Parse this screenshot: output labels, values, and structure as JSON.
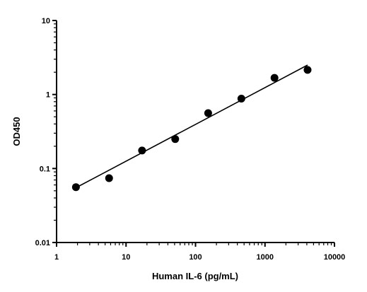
{
  "chart_data": {
    "type": "scatter",
    "x_scale": "log",
    "y_scale": "log",
    "xlim": [
      1,
      10000
    ],
    "ylim": [
      0.01,
      10
    ],
    "xlabel": "Human IL-6 (pg/mL)",
    "ylabel": "OD450",
    "x_ticks": [
      "1",
      "10",
      "100",
      "1000",
      "10000"
    ],
    "y_ticks": [
      "0.01",
      "0.1",
      "1",
      "10"
    ],
    "grid": false,
    "legend": "none",
    "points": [
      {
        "x": 1.9,
        "y": 0.056
      },
      {
        "x": 5.7,
        "y": 0.074
      },
      {
        "x": 17,
        "y": 0.175
      },
      {
        "x": 51,
        "y": 0.25
      },
      {
        "x": 152,
        "y": 0.56
      },
      {
        "x": 457,
        "y": 0.88
      },
      {
        "x": 1370,
        "y": 1.68
      },
      {
        "x": 4100,
        "y": 2.15
      }
    ],
    "fit_line": {
      "type": "linear on log-log",
      "x_range": [
        1.9,
        4100
      ],
      "y_range": [
        0.055,
        2.5
      ]
    },
    "marker_color": "#000000",
    "line_color": "#000000"
  }
}
